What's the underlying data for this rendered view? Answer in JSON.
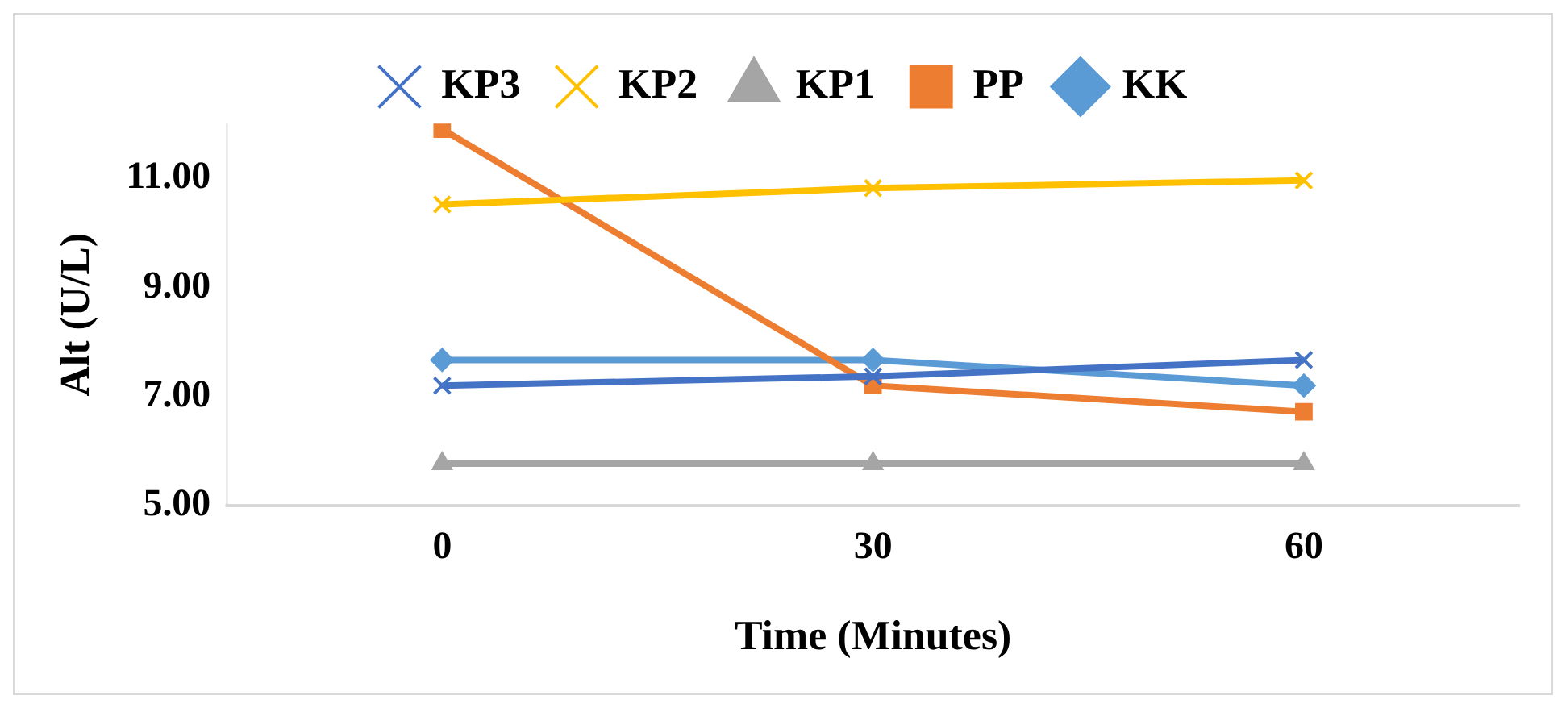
{
  "chart_data": {
    "type": "line",
    "xlabel": "Time (Minutes)",
    "ylabel": "Alt (U/L)",
    "categories": [
      "0",
      "30",
      "60"
    ],
    "ylim": [
      5,
      12
    ],
    "yticks": [
      {
        "value": 5,
        "label": "5.00"
      },
      {
        "value": 7,
        "label": "7.00"
      },
      {
        "value": 9,
        "label": "9.00"
      },
      {
        "value": 11,
        "label": "11.00"
      }
    ],
    "grid": false,
    "legend": "top",
    "line_style": "solid",
    "series": [
      {
        "name": "KK",
        "color": "#5b9bd5",
        "marker": "diamond",
        "values": [
          7.67,
          7.67,
          7.2
        ]
      },
      {
        "name": "PP",
        "color": "#ed7d31",
        "marker": "square",
        "values": [
          11.9,
          7.2,
          6.72
        ]
      },
      {
        "name": "KP1",
        "color": "#a5a5a5",
        "marker": "triangle",
        "values": [
          5.77,
          5.77,
          5.77
        ]
      },
      {
        "name": "KP2",
        "color": "#ffc000",
        "marker": "cross",
        "values": [
          10.52,
          10.82,
          10.96
        ]
      },
      {
        "name": "KP3",
        "color": "#4472c4",
        "marker": "cross",
        "values": [
          7.2,
          7.37,
          7.67
        ]
      }
    ]
  }
}
